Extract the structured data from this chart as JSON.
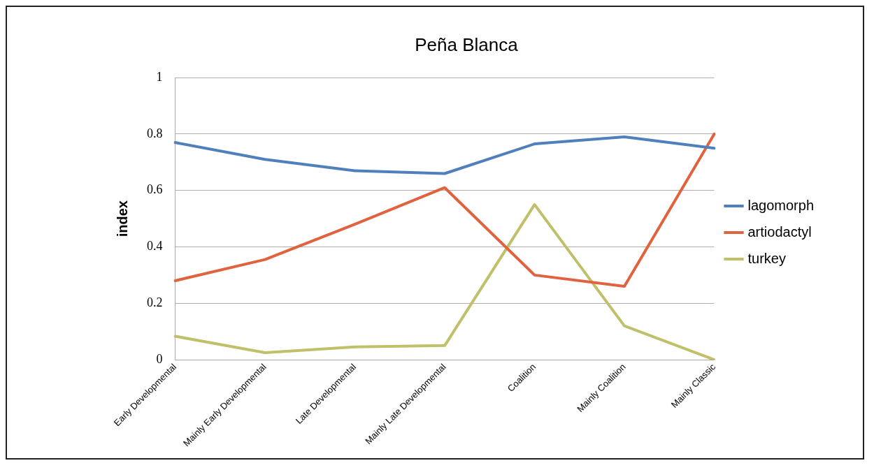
{
  "chart_data": {
    "type": "line",
    "title": "Peña Blanca",
    "ylabel": "index",
    "categories": [
      "Early Developmental",
      "Mainly Early Developmental",
      "Late Developmental",
      "Mainly Late Developmental",
      "Coalition",
      "Mainly Coalition",
      "Mainly Classic"
    ],
    "series": [
      {
        "name": "lagomorph",
        "color": "#4f7fbd",
        "values": [
          0.77,
          0.71,
          0.67,
          0.66,
          0.765,
          0.79,
          0.75
        ]
      },
      {
        "name": "artiodactyl",
        "color": "#e0623e",
        "values": [
          0.28,
          0.355,
          0.48,
          0.61,
          0.3,
          0.26,
          0.8
        ]
      },
      {
        "name": "turkey",
        "color": "#c0c06a",
        "values": [
          0.083,
          0.025,
          0.045,
          0.05,
          0.55,
          0.12,
          0
        ]
      }
    ],
    "ylim": [
      0,
      1
    ],
    "yticks": [
      0,
      0.2,
      0.4,
      0.6,
      0.8,
      1
    ],
    "grid": "y",
    "legend": "right",
    "marker": "none",
    "line_style": "solid"
  }
}
